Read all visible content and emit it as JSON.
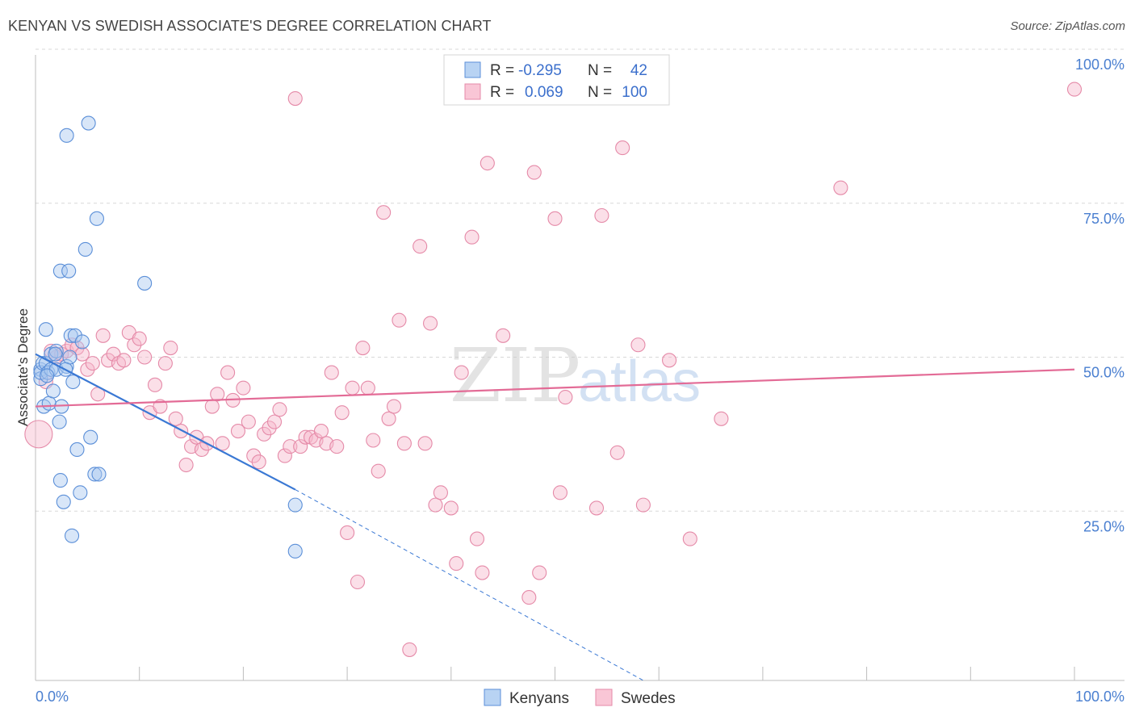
{
  "header": {
    "title": "KENYAN VS SWEDISH ASSOCIATE'S DEGREE CORRELATION CHART",
    "source": "Source: ZipAtlas.com"
  },
  "watermark": {
    "zip": "ZIP",
    "atlas": "atlas"
  },
  "legend": {
    "rows": [
      {
        "r_label": "R =",
        "r_value": "-0.295",
        "n_label": "N =",
        "n_value": "42"
      },
      {
        "r_label": "R =",
        "r_value": "0.069",
        "n_label": "N =",
        "n_value": "100"
      }
    ]
  },
  "bottom_legend": [
    "Kenyans",
    "Swedes"
  ],
  "colors": {
    "kenyan_fill": "#a8c8f0",
    "kenyan_stroke": "#5b8fd8",
    "kenyan_line": "#3a78d4",
    "swede_fill": "#f7b8cb",
    "swede_stroke": "#e58aa8",
    "swede_line": "#e36b96",
    "grid": "#d8d8d8",
    "tick_text": "#4a7fd0"
  },
  "chart_data": {
    "type": "scatter",
    "title": "KENYAN VS SWEDISH ASSOCIATE'S DEGREE CORRELATION CHART",
    "xlabel": "",
    "ylabel": "Associate's Degree",
    "xlim": [
      0,
      100
    ],
    "ylim": [
      0,
      100
    ],
    "x_tick_labels": [
      "0.0%",
      "100.0%"
    ],
    "y_ticks": [
      25,
      50,
      75,
      100
    ],
    "y_tick_labels": [
      "25.0%",
      "50.0%",
      "75.0%",
      "100.0%"
    ],
    "series": [
      {
        "name": "Kenyans",
        "r": -0.295,
        "n": 42,
        "trend": {
          "x0": 0,
          "y0": 50.5,
          "x1": 25,
          "y1": 28.5,
          "dashed_to_x": 58.5,
          "dashed_to_y": 0
        },
        "points": [
          [
            0.5,
            48
          ],
          [
            0.5,
            46.5
          ],
          [
            0.5,
            47.5
          ],
          [
            0.7,
            49
          ],
          [
            0.8,
            42
          ],
          [
            1,
            54.5
          ],
          [
            1,
            49
          ],
          [
            1.2,
            47.5
          ],
          [
            1.3,
            42.5
          ],
          [
            1.5,
            50.5
          ],
          [
            1.5,
            48
          ],
          [
            1.7,
            44.5
          ],
          [
            2,
            51
          ],
          [
            2,
            48
          ],
          [
            2.3,
            39.5
          ],
          [
            2.4,
            30
          ],
          [
            2.4,
            64
          ],
          [
            2.5,
            42
          ],
          [
            2.7,
            26.5
          ],
          [
            3,
            48.5
          ],
          [
            3,
            86
          ],
          [
            3.2,
            64
          ],
          [
            3.3,
            50
          ],
          [
            3.4,
            53.5
          ],
          [
            3.5,
            21
          ],
          [
            3.6,
            46
          ],
          [
            3.8,
            53.5
          ],
          [
            4,
            35
          ],
          [
            4.3,
            28
          ],
          [
            4.5,
            52.5
          ],
          [
            4.8,
            67.5
          ],
          [
            5.1,
            88
          ],
          [
            5.3,
            37
          ],
          [
            5.7,
            31
          ],
          [
            5.9,
            72.5
          ],
          [
            6.1,
            31
          ],
          [
            10.5,
            62
          ],
          [
            25,
            26
          ],
          [
            25,
            18.5
          ],
          [
            1.9,
            50.5
          ],
          [
            1.1,
            47
          ],
          [
            2.9,
            48
          ]
        ]
      },
      {
        "name": "Swedes",
        "r": 0.069,
        "n": 100,
        "trend": {
          "x0": 0,
          "y0": 42,
          "x1": 100,
          "y1": 48
        },
        "points": [
          [
            0.3,
            37.5
          ],
          [
            1,
            46
          ],
          [
            1.5,
            51
          ],
          [
            2,
            50
          ],
          [
            2.5,
            50.5
          ],
          [
            3,
            51
          ],
          [
            3.5,
            52
          ],
          [
            4,
            51.5
          ],
          [
            4.5,
            50.5
          ],
          [
            5,
            48
          ],
          [
            5.5,
            49
          ],
          [
            6,
            44
          ],
          [
            6.5,
            53.5
          ],
          [
            7,
            49.5
          ],
          [
            7.5,
            50.5
          ],
          [
            8,
            49
          ],
          [
            8.5,
            49.5
          ],
          [
            9,
            54
          ],
          [
            9.5,
            52
          ],
          [
            10,
            53
          ],
          [
            10.5,
            50
          ],
          [
            11,
            41
          ],
          [
            11.5,
            45.5
          ],
          [
            12,
            42
          ],
          [
            12.5,
            49
          ],
          [
            13,
            51.5
          ],
          [
            13.5,
            40
          ],
          [
            14,
            38
          ],
          [
            14.5,
            32.5
          ],
          [
            15,
            35.5
          ],
          [
            15.5,
            37
          ],
          [
            16,
            35
          ],
          [
            16.5,
            36
          ],
          [
            17,
            42
          ],
          [
            17.5,
            44
          ],
          [
            18,
            36
          ],
          [
            18.5,
            47.5
          ],
          [
            19,
            43
          ],
          [
            19.5,
            38
          ],
          [
            20,
            45
          ],
          [
            20.5,
            39.5
          ],
          [
            21,
            34
          ],
          [
            21.5,
            33
          ],
          [
            22,
            37.5
          ],
          [
            22.5,
            38.5
          ],
          [
            23,
            39.5
          ],
          [
            23.5,
            41.5
          ],
          [
            24,
            34
          ],
          [
            24.5,
            35.5
          ],
          [
            25,
            92
          ],
          [
            25.5,
            35.5
          ],
          [
            26,
            37
          ],
          [
            26.5,
            37
          ],
          [
            27,
            36.5
          ],
          [
            27.5,
            38
          ],
          [
            28,
            36
          ],
          [
            28.5,
            47.5
          ],
          [
            29,
            35.5
          ],
          [
            29.5,
            41
          ],
          [
            30,
            21.5
          ],
          [
            30.5,
            45
          ],
          [
            31,
            13.5
          ],
          [
            31.5,
            51.5
          ],
          [
            32,
            45
          ],
          [
            32.5,
            36.5
          ],
          [
            33,
            31.5
          ],
          [
            33.5,
            73.5
          ],
          [
            34,
            40
          ],
          [
            34.5,
            42
          ],
          [
            35,
            56
          ],
          [
            35.5,
            36
          ],
          [
            36,
            2.5
          ],
          [
            37,
            68
          ],
          [
            37.5,
            36
          ],
          [
            38,
            55.5
          ],
          [
            38.5,
            26
          ],
          [
            39,
            28
          ],
          [
            40,
            25.5
          ],
          [
            40.5,
            16.5
          ],
          [
            41,
            47.5
          ],
          [
            42,
            69.5
          ],
          [
            42.5,
            20.5
          ],
          [
            43,
            15
          ],
          [
            43.5,
            81.5
          ],
          [
            45,
            53.5
          ],
          [
            47.5,
            11
          ],
          [
            48,
            80
          ],
          [
            48.5,
            15
          ],
          [
            50,
            72.5
          ],
          [
            50.5,
            28
          ],
          [
            51,
            43.5
          ],
          [
            54,
            25.5
          ],
          [
            54.5,
            73
          ],
          [
            56,
            34.5
          ],
          [
            56.5,
            84
          ],
          [
            58,
            52
          ],
          [
            58.5,
            26
          ],
          [
            61,
            49.5
          ],
          [
            63,
            20.5
          ],
          [
            66,
            40
          ],
          [
            77.5,
            77.5
          ],
          [
            100,
            93.5
          ]
        ]
      }
    ]
  }
}
